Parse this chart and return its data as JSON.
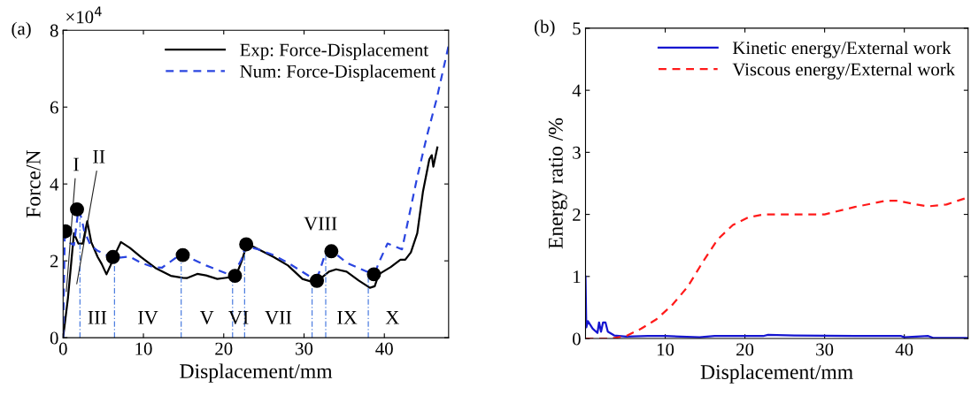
{
  "chart_data": [
    {
      "type": "line",
      "xlabel": "Displacement/mm",
      "ylabel": "Force/N",
      "xlim": [
        0,
        48
      ],
      "xticks": [
        0,
        10,
        20,
        30,
        40
      ],
      "ylim": [
        0,
        8
      ],
      "yticks": [
        0,
        2,
        4,
        6,
        8
      ],
      "grid": false,
      "legend": "top right",
      "line_style": "solid",
      "marker": "none",
      "series": [
        {
          "name": "Exp: Force-Displacement",
          "color": "#000000",
          "x": [
            0,
            0.6,
            1.35,
            1.9,
            2.45,
            3.0,
            3.5,
            4.3,
            4.8,
            5.4,
            5.9,
            6.5,
            7.2,
            8.3,
            9.7,
            11.6,
            13.4,
            14.9,
            15.4,
            16.7,
            17.8,
            19.2,
            20.7,
            21.6,
            22.3,
            22.9,
            24.3,
            26.2,
            28.0,
            29.8,
            30.9,
            32.0,
            33.1,
            34.0,
            35.3,
            36.8,
            38.2,
            38.8,
            39.3,
            40.8,
            42.0,
            42.6,
            43.3,
            44.1,
            44.8,
            45.6,
            45.9,
            46.1,
            46.6
          ],
          "values": [
            0,
            1.03,
            2.72,
            2.45,
            2.45,
            3.03,
            2.49,
            2.1,
            1.92,
            1.65,
            1.88,
            2.18,
            2.49,
            2.34,
            2.1,
            1.8,
            1.61,
            1.56,
            1.55,
            1.66,
            1.62,
            1.53,
            1.57,
            1.65,
            2.03,
            2.45,
            2.3,
            2.1,
            1.88,
            1.53,
            1.46,
            1.53,
            1.72,
            1.78,
            1.72,
            1.49,
            1.3,
            1.34,
            1.65,
            1.84,
            2.03,
            2.03,
            2.22,
            2.72,
            3.79,
            4.64,
            4.75,
            4.45,
            4.95
          ]
        },
        {
          "name": "Num: Force-Displacement",
          "color": "#2a45e0",
          "line_style": "dashed",
          "x": [
            0,
            0.2,
            0.6,
            1.35,
            1.9,
            2.3,
            2.6,
            3.4,
            4.3,
            5.4,
            6.5,
            8.3,
            9.7,
            11.2,
            12.3,
            14.7,
            17.8,
            21.1,
            22.2,
            22.7,
            24.3,
            26.2,
            28.0,
            30.9,
            31.8,
            32.7,
            33.5,
            35.3,
            37.8,
            38.9,
            39.3,
            40.4,
            42.2,
            44.1,
            45.3,
            46.5,
            48
          ],
          "values": [
            0,
            2.64,
            2.49,
            2.41,
            3.33,
            3.1,
            2.8,
            2.41,
            2.26,
            2.15,
            2.07,
            2.11,
            1.95,
            1.84,
            1.82,
            2.18,
            1.88,
            1.61,
            2.03,
            2.38,
            2.3,
            2.15,
            1.95,
            1.57,
            1.65,
            2.22,
            2.26,
            1.95,
            1.72,
            1.72,
            1.95,
            2.45,
            2.3,
            4.18,
            5.25,
            6.2,
            7.6
          ]
        },
        {
          "type": "scatter",
          "color": "#000000",
          "marker": "circle",
          "x": [
            0.27,
            1.73,
            6.2,
            14.9,
            21.4,
            22.8,
            31.6,
            33.4,
            38.7
          ],
          "values": [
            2.77,
            3.34,
            2.1,
            2.15,
            1.61,
            2.43,
            1.48,
            2.25,
            1.65
          ]
        }
      ],
      "ref_lines": [
        {
          "axis": "x",
          "value": 2.1,
          "color": "#4f7fe0",
          "line_style": "dotted"
        },
        {
          "axis": "x",
          "value": 6.4,
          "color": "#4f7fe0",
          "line_style": "dotted"
        },
        {
          "axis": "x",
          "value": 14.7,
          "color": "#4f7fe0",
          "line_style": "dotted"
        },
        {
          "axis": "x",
          "value": 21.1,
          "color": "#4f7fe0",
          "line_style": "dotted"
        },
        {
          "axis": "x",
          "value": 22.6,
          "color": "#4f7fe0",
          "line_style": "dotted"
        },
        {
          "axis": "x",
          "value": 31.0,
          "color": "#4f7fe0",
          "line_style": "dotted"
        },
        {
          "axis": "x",
          "value": 32.7,
          "color": "#4f7fe0",
          "line_style": "dotted"
        },
        {
          "axis": "x",
          "value": 38.0,
          "color": "#4f7fe0",
          "line_style": "dotted"
        }
      ],
      "annotations": [
        {
          "text": "I",
          "x": 0.4,
          "y": 1.2
        },
        {
          "text": "II",
          "x": 1.7,
          "y": 1.4
        },
        {
          "text": "VIII",
          "x": 31.6,
          "y": 1.48
        },
        "III",
        "IV",
        "V",
        "VI",
        "VII",
        "IX",
        "X",
        "(a)",
        "×10$^{4}$"
      ]
    },
    {
      "type": "line",
      "xlabel": "Displacement/mm",
      "ylabel": "Energy ratio /%",
      "xlim": [
        0,
        48
      ],
      "xticks": [
        10,
        20,
        30,
        40
      ],
      "ylim": [
        0,
        5
      ],
      "yticks": [
        0,
        1,
        2,
        3,
        4,
        5
      ],
      "grid": false,
      "legend": "top right",
      "line_style": "solid",
      "series": [
        {
          "name": "Kinetic energy/External work",
          "color": "#1515d0",
          "x": [
            0,
            0.1,
            0.3,
            0.9,
            1.5,
            1.7,
            1.95,
            2.2,
            2.5,
            2.8,
            3.6,
            5.1,
            7.8,
            10,
            14.3,
            16.2,
            22.3,
            22.9,
            26.2,
            33.8,
            39.6,
            40,
            43,
            43.6,
            47.9
          ],
          "values": [
            1.0,
            0.18,
            0.28,
            0.16,
            0.09,
            0.26,
            0.11,
            0.26,
            0.26,
            0.11,
            0.05,
            0.03,
            0.04,
            0.04,
            0.02,
            0.04,
            0.04,
            0.06,
            0.05,
            0.04,
            0.04,
            0.02,
            0.04,
            0.01,
            0.01
          ]
        },
        {
          "name": "Viscous energy/External work",
          "color": "#ff1a1a",
          "line_style": "dashed",
          "x": [
            0,
            3.2,
            5.1,
            7.0,
            8.9,
            10.8,
            12.8,
            14.7,
            16.6,
            18.5,
            20.4,
            22.3,
            26.2,
            30.0,
            33.8,
            37.7,
            39.2,
            41.5,
            43.0,
            45.3,
            47.9
          ],
          "values": [
            0,
            0,
            0.04,
            0.16,
            0.31,
            0.53,
            0.83,
            1.23,
            1.6,
            1.83,
            1.95,
            2.0,
            2.0,
            2.0,
            2.12,
            2.22,
            2.22,
            2.16,
            2.13,
            2.16,
            2.27
          ]
        }
      ],
      "annotations": [
        "(b)"
      ]
    }
  ]
}
